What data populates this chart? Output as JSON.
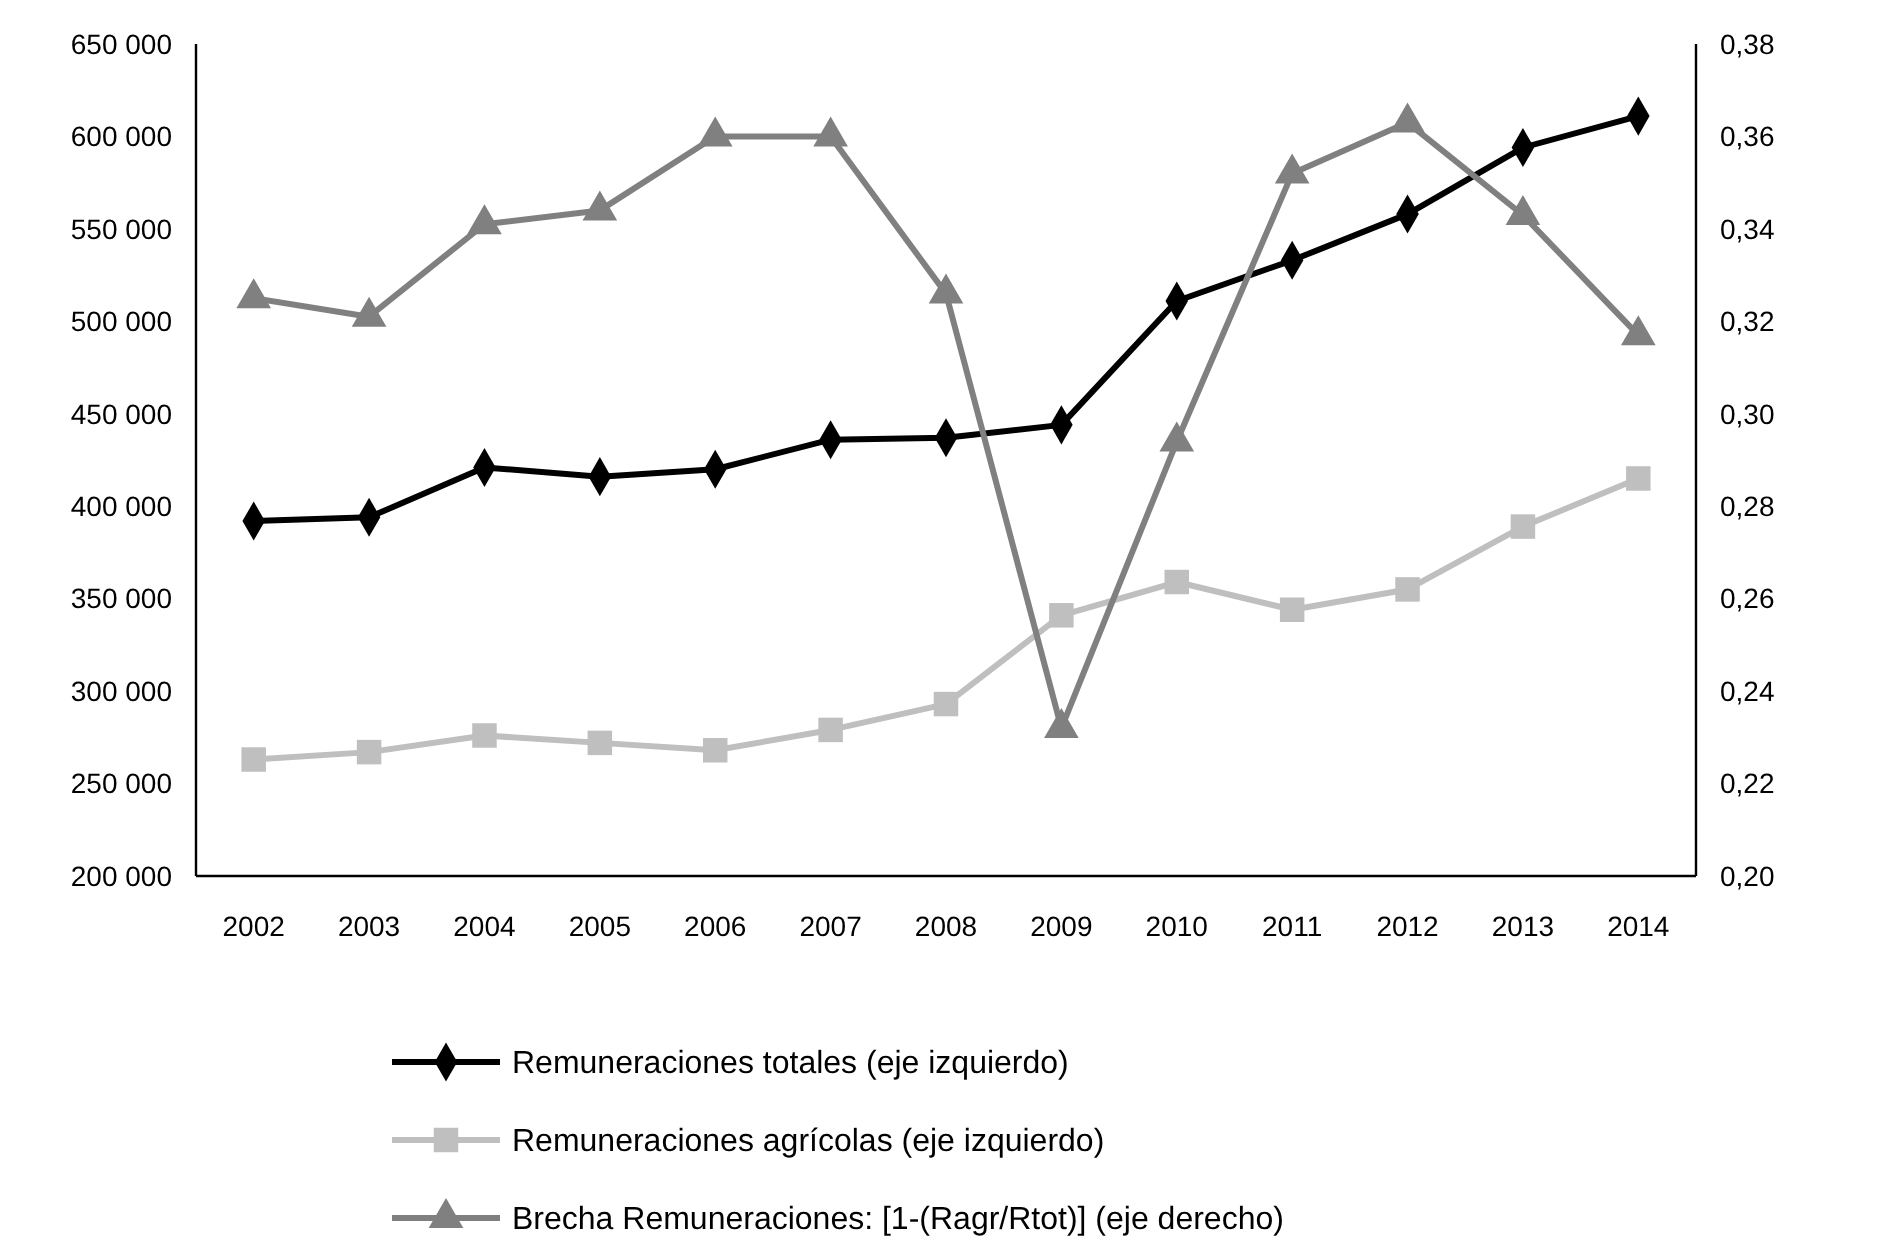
{
  "chart_data": {
    "type": "line",
    "categories": [
      "2002",
      "2003",
      "2004",
      "2005",
      "2006",
      "2007",
      "2008",
      "2009",
      "2010",
      "2011",
      "2012",
      "2013",
      "2014"
    ],
    "series": [
      {
        "name": "Remuneraciones totales (eje izquierdo)",
        "color": "#000000",
        "marker": "diamond",
        "values": [
          392000,
          394000,
          421000,
          416000,
          420000,
          436000,
          437000,
          444000,
          511000,
          533000,
          558000,
          594000,
          611000
        ]
      },
      {
        "name": "Remuneraciones agrícolas (eje izquierdo)",
        "color": "#bfbfbf",
        "marker": "square",
        "values": [
          263000,
          267000,
          276000,
          272000,
          268000,
          279000,
          293000,
          341000,
          359000,
          344000,
          355000,
          389000,
          415000
        ]
      },
      {
        "name": "Brecha Remuneraciones: [1-(Ragr/Rtot)]  (eje derecho)",
        "color": "#808080",
        "marker": "triangle",
        "axis": "y2",
        "values": [
          0.325,
          0.321,
          0.341,
          0.344,
          0.36,
          0.36,
          0.326,
          0.232,
          0.294,
          0.352,
          0.363,
          0.343,
          0.317
        ]
      }
    ],
    "ylim": [
      200000,
      650000
    ],
    "yticks": [
      {
        "value": 200000,
        "label": "200 000"
      },
      {
        "value": 250000,
        "label": "250 000"
      },
      {
        "value": 300000,
        "label": "300 000"
      },
      {
        "value": 350000,
        "label": "350 000"
      },
      {
        "value": 400000,
        "label": "400 000"
      },
      {
        "value": 450000,
        "label": "450 000"
      },
      {
        "value": 500000,
        "label": "500 000"
      },
      {
        "value": 550000,
        "label": "550 000"
      },
      {
        "value": 600000,
        "label": "600 000"
      },
      {
        "value": 650000,
        "label": "650 000"
      }
    ],
    "y2lim": [
      0.2,
      0.38
    ],
    "y2ticks": [
      {
        "value": 0.2,
        "label": "0,20"
      },
      {
        "value": 0.22,
        "label": "0,22"
      },
      {
        "value": 0.24,
        "label": "0,24"
      },
      {
        "value": 0.26,
        "label": "0,26"
      },
      {
        "value": 0.28,
        "label": "0,28"
      },
      {
        "value": 0.3,
        "label": "0,30"
      },
      {
        "value": 0.32,
        "label": "0,32"
      },
      {
        "value": 0.34,
        "label": "0,34"
      },
      {
        "value": 0.36,
        "label": "0,36"
      },
      {
        "value": 0.38,
        "label": "0,38"
      }
    ],
    "grid": false,
    "legend": "bottom"
  }
}
